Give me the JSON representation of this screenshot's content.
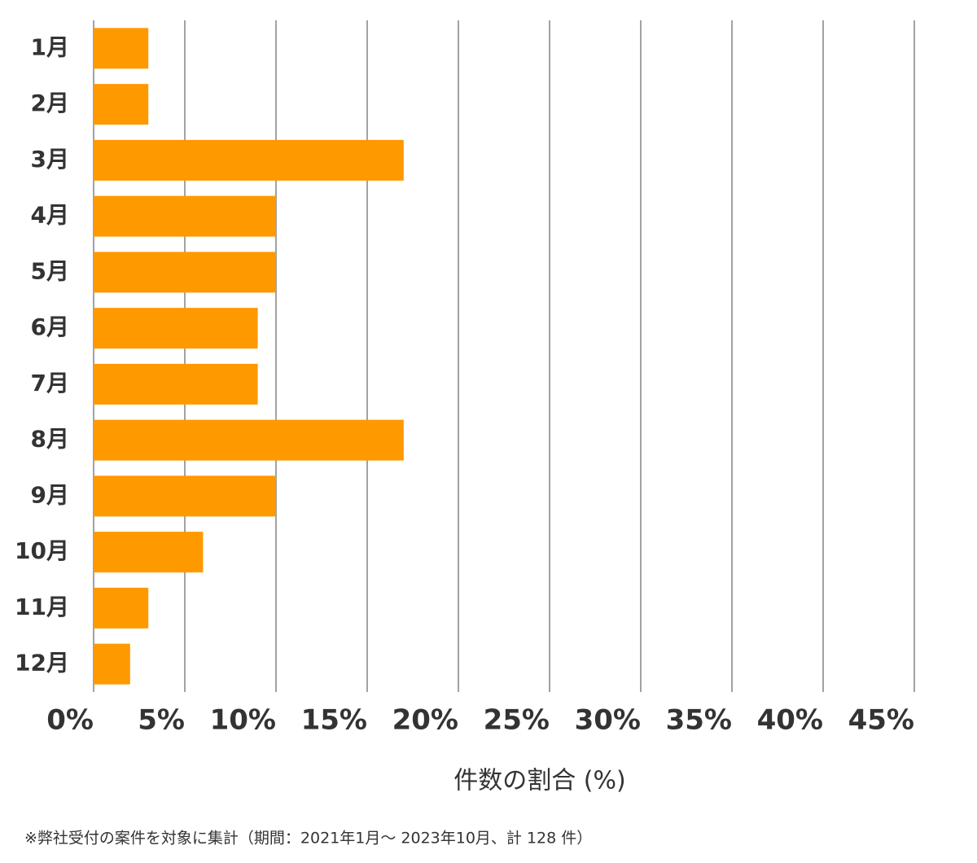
{
  "chart_data": {
    "type": "bar",
    "orientation": "horizontal",
    "categories": [
      "1月",
      "2月",
      "3月",
      "4月",
      "5月",
      "6月",
      "7月",
      "8月",
      "9月",
      "10月",
      "11月",
      "12月"
    ],
    "values": [
      3,
      3,
      17,
      10,
      10,
      9,
      9,
      17,
      10,
      6,
      3,
      2
    ],
    "color": "#ff9900",
    "xlim": [
      0,
      45
    ],
    "xticks": [
      {
        "value": 0,
        "label": "0%"
      },
      {
        "value": 5,
        "label": "5%"
      },
      {
        "value": 10,
        "label": "10%"
      },
      {
        "value": 15,
        "label": "15%"
      },
      {
        "value": 20,
        "label": "20%"
      },
      {
        "value": 25,
        "label": "25%"
      },
      {
        "value": 30,
        "label": "30%"
      },
      {
        "value": 35,
        "label": "35%"
      },
      {
        "value": 40,
        "label": "40%"
      },
      {
        "value": 45,
        "label": "45%"
      }
    ],
    "grid": true,
    "x_label": "件数の割合 (%)",
    "note": "※弊社受付の案件を対象に集計（期間：2021年1月～ 2023年10月、計 128 件）"
  }
}
